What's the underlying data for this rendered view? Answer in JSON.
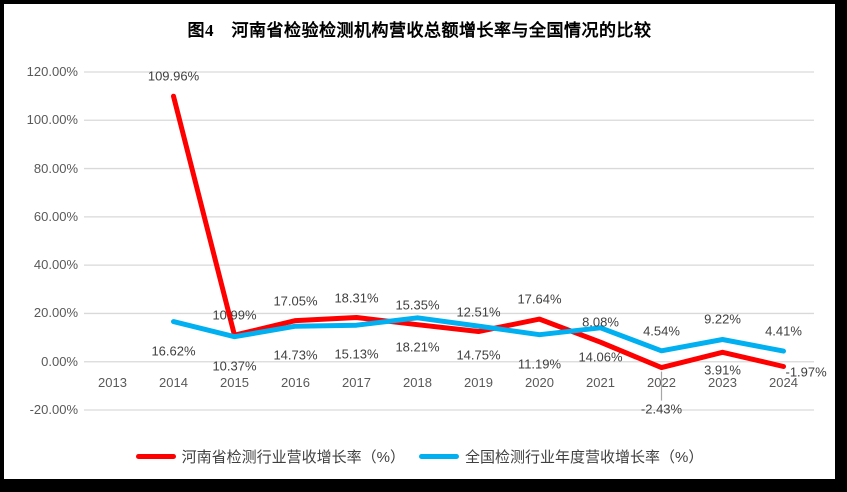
{
  "chart_data": {
    "type": "line",
    "title": "图4　河南省检验检测机构营收总额增长率与全国情况的比较",
    "categories": [
      "2013",
      "2014",
      "2015",
      "2016",
      "2017",
      "2018",
      "2019",
      "2020",
      "2021",
      "2022",
      "2023",
      "2024"
    ],
    "series": [
      {
        "name": "河南省检测行业营收增长率（%）",
        "color": "#FE0000",
        "values": [
          null,
          109.96,
          10.99,
          17.05,
          18.31,
          15.35,
          12.51,
          17.64,
          8.08,
          -2.43,
          3.91,
          -1.97
        ],
        "label_placement": [
          "",
          "above",
          "above",
          "above",
          "above",
          "above",
          "above",
          "above",
          "above",
          "axis-below",
          "below",
          "right"
        ]
      },
      {
        "name": "全国检测行业年度营收增长率（%）",
        "color": "#00B0F0",
        "values": [
          null,
          16.62,
          10.37,
          14.73,
          15.13,
          18.21,
          14.75,
          11.19,
          14.06,
          4.54,
          9.22,
          4.41
        ],
        "label_placement": [
          "",
          "far-below",
          "far-below",
          "far-below",
          "far-below",
          "far-below",
          "far-below",
          "far-below",
          "far-below",
          "above",
          "above",
          "above"
        ]
      }
    ],
    "ylim": [
      -20,
      120
    ],
    "ytick_step": 20,
    "ytick_labels": [
      "120.00%",
      "100.00%",
      "80.00%",
      "60.00%",
      "40.00%",
      "20.00%",
      "0.00%",
      "-20.00%"
    ],
    "xlabel": "",
    "ylabel": "",
    "grid": true,
    "legend_position": "bottom",
    "gridline_color": "#D9D9D9",
    "axis_text_color": "#595959",
    "data_label_color": "#404040",
    "leader_line_color": "#A6A6A6"
  }
}
